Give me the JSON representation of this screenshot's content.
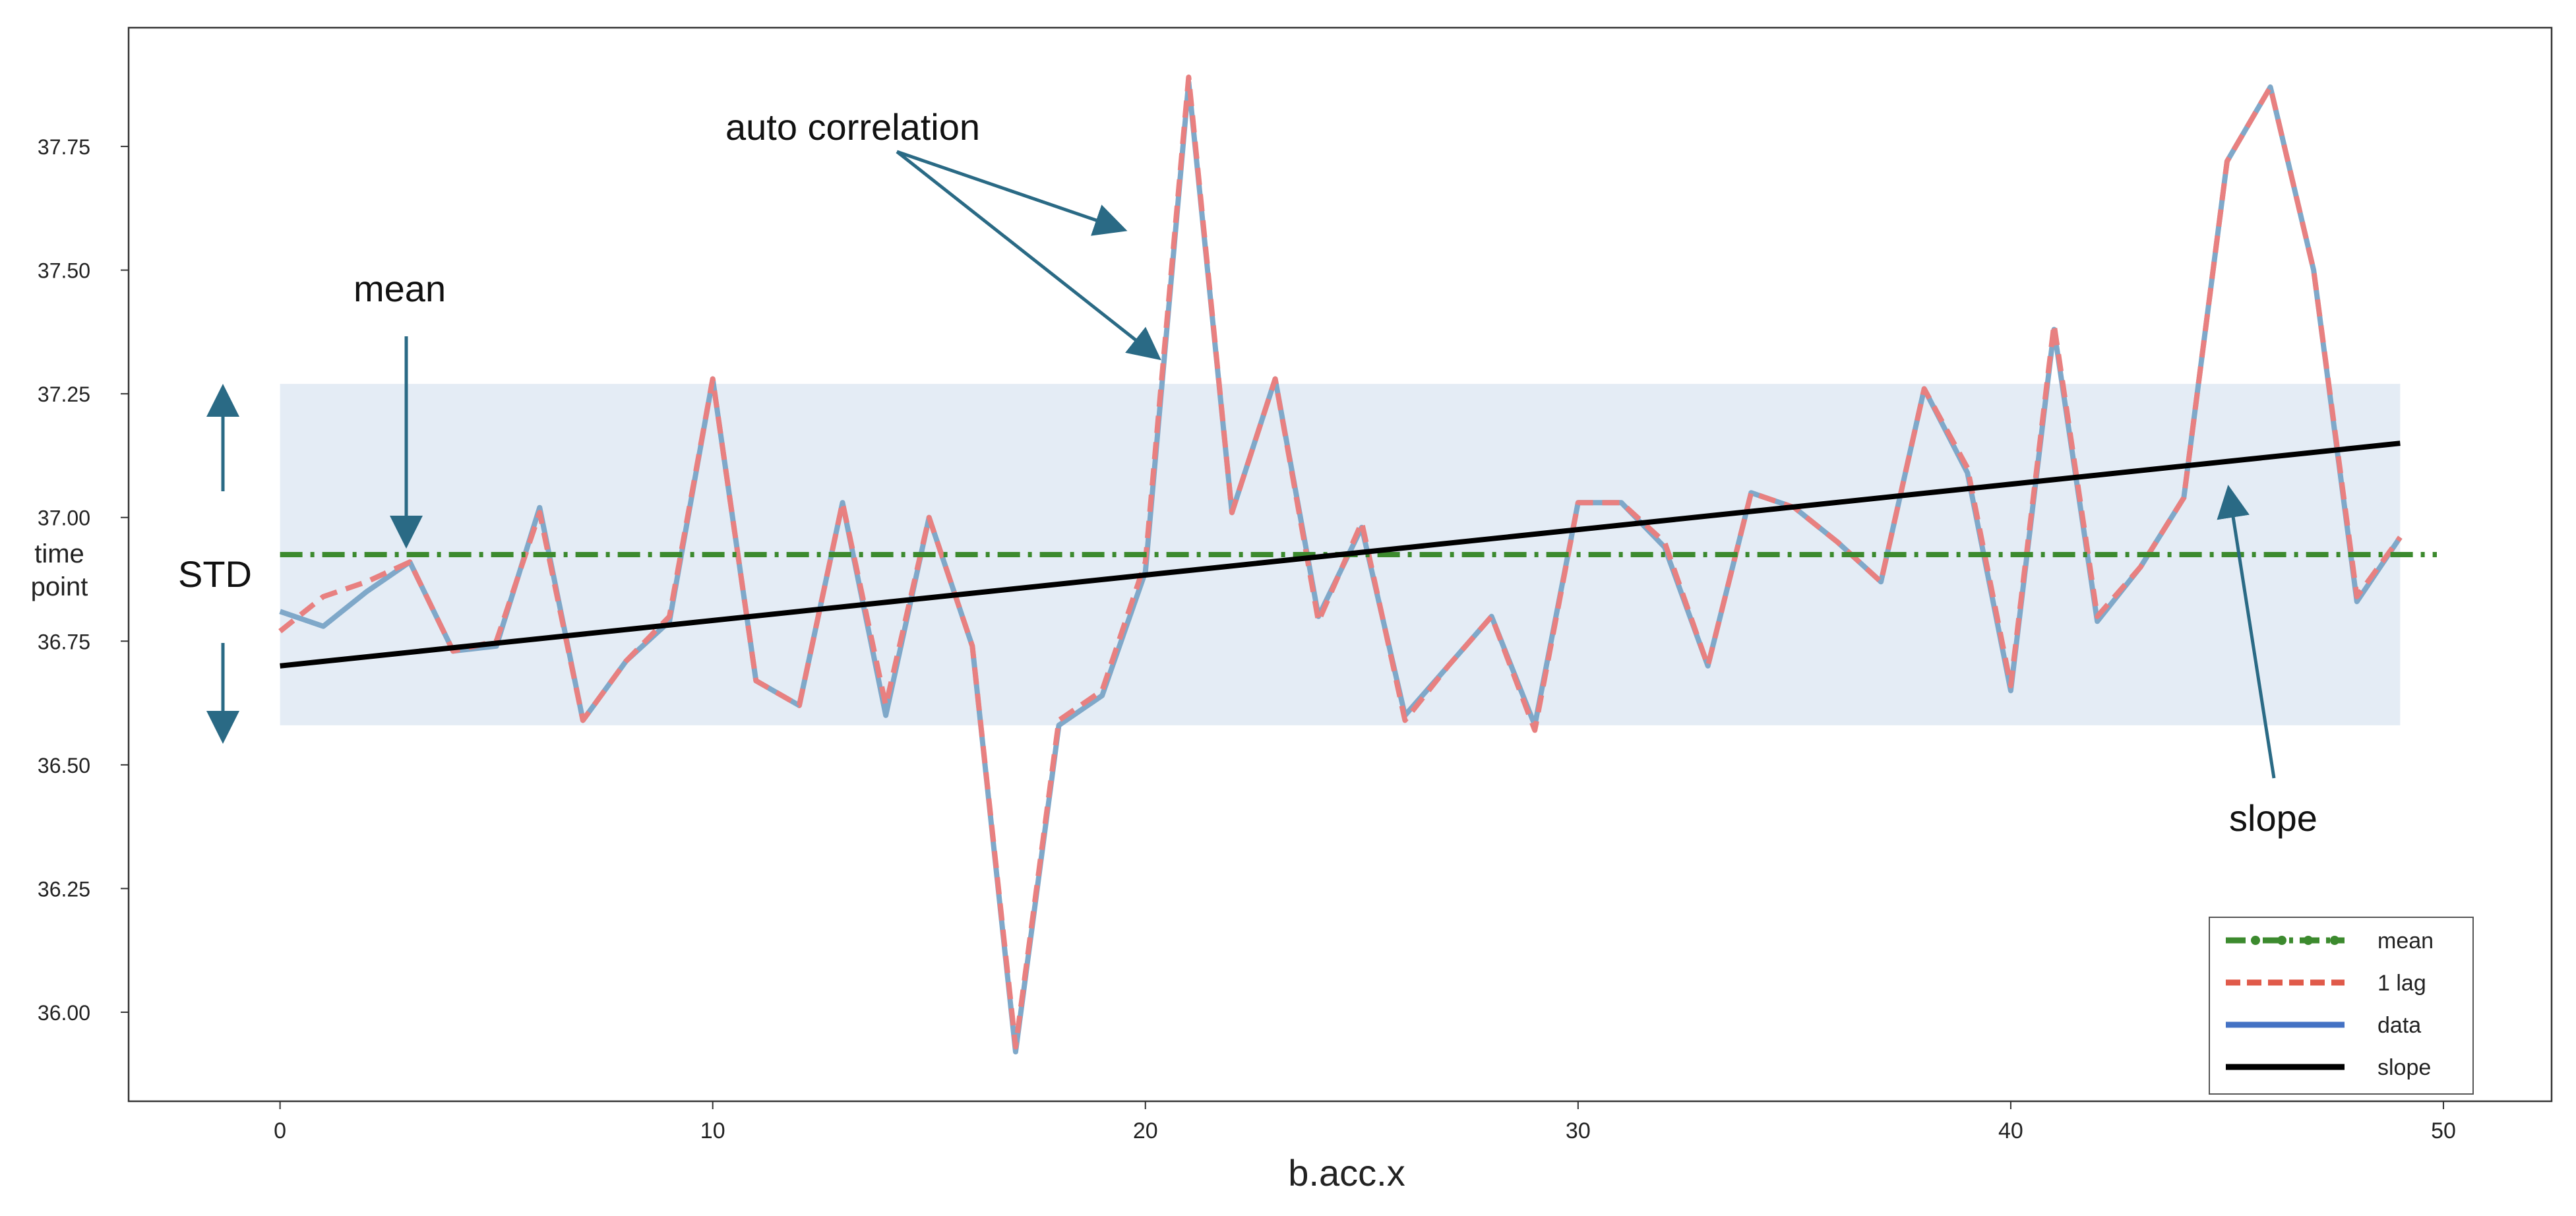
{
  "chart_data": {
    "type": "line",
    "xlabel": "b.acc.x",
    "ylabel": [
      "time",
      "point"
    ],
    "xlim": [
      -3.5,
      52.5
    ],
    "ylim": [
      35.82,
      37.99
    ],
    "x_ticks": [
      0,
      10,
      20,
      30,
      40,
      50
    ],
    "y_ticks": [
      36.0,
      36.25,
      36.5,
      36.75,
      37.0,
      37.25,
      37.5,
      37.75
    ],
    "y_tick_labels": [
      "36.00",
      "36.25",
      "36.50",
      "36.75",
      "37.00",
      "37.25",
      "37.50",
      "37.75"
    ],
    "grid": false,
    "legend_position": "bottom-right",
    "series": [
      {
        "name": "data",
        "color": "#7fa8c9",
        "style": "solid",
        "values": [
          36.81,
          36.78,
          36.85,
          36.91,
          36.73,
          36.74,
          37.02,
          36.59,
          36.71,
          36.79,
          37.28,
          36.67,
          36.62,
          37.03,
          36.6,
          37.0,
          36.74,
          35.92,
          36.58,
          36.64,
          36.89,
          37.88,
          37.01,
          37.28,
          36.8,
          36.98,
          36.6,
          36.7,
          36.8,
          36.58,
          37.03,
          37.03,
          36.94,
          36.7,
          37.05,
          37.02,
          36.95,
          36.87,
          37.26,
          37.09,
          36.65,
          37.38,
          36.79,
          36.9,
          37.04,
          37.72,
          37.87,
          37.5,
          36.83,
          36.96
        ]
      },
      {
        "name": "1 lag",
        "color": "#e88080",
        "style": "dashed",
        "values": [
          36.77,
          36.84,
          36.87,
          36.91,
          36.73,
          36.75,
          37.01,
          36.59,
          36.71,
          36.8,
          37.28,
          36.67,
          36.62,
          37.03,
          36.62,
          37.0,
          36.74,
          35.93,
          36.59,
          36.65,
          36.91,
          37.89,
          37.01,
          37.28,
          36.79,
          36.99,
          36.59,
          36.7,
          36.8,
          36.57,
          37.03,
          37.03,
          36.95,
          36.7,
          37.05,
          37.02,
          36.95,
          36.87,
          37.26,
          37.1,
          36.66,
          37.39,
          36.8,
          36.9,
          37.04,
          37.72,
          37.87,
          37.5,
          36.84,
          36.96
        ]
      }
    ],
    "mean": {
      "name": "mean",
      "value": 36.925,
      "color": "#3c8a2e",
      "x_range": [
        0,
        50
      ]
    },
    "slope": {
      "name": "slope",
      "color": "#000000",
      "x": [
        0,
        49
      ],
      "y": [
        36.7,
        37.15
      ]
    },
    "std_band": {
      "x_range": [
        0,
        49
      ],
      "y_range": [
        36.58,
        37.27
      ],
      "color": "#e4ecf5"
    },
    "annotations": {
      "auto_correlation": "auto correlation",
      "mean": "mean",
      "std": "STD",
      "slope": "slope"
    },
    "annotation_color": "#2a6a85",
    "legend": [
      {
        "label": "mean",
        "style": "dashdot",
        "color": "#3c8a2e"
      },
      {
        "label": "1 lag",
        "style": "dashed",
        "color": "#e05a4a"
      },
      {
        "label": "data",
        "style": "solid",
        "color": "#4472c4"
      },
      {
        "label": "slope",
        "style": "solid",
        "color": "#000000"
      }
    ]
  }
}
